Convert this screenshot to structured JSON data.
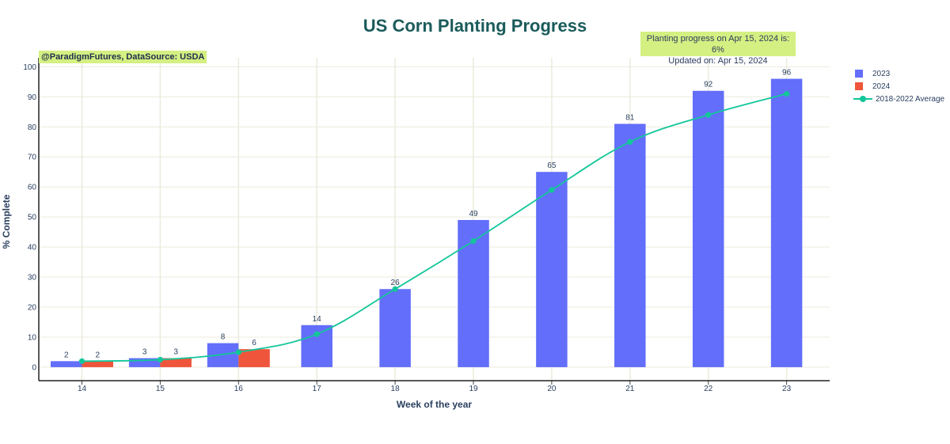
{
  "chart_data": {
    "type": "bar",
    "title": "US Corn Planting Progress",
    "xlabel": "Week of the year",
    "ylabel": "% Complete",
    "categories": [
      14,
      15,
      16,
      17,
      18,
      19,
      20,
      21,
      22,
      23
    ],
    "y_ticks": [
      0,
      10,
      20,
      30,
      40,
      50,
      60,
      70,
      80,
      90,
      100
    ],
    "ylim": [
      -4.5,
      103
    ],
    "grid": true,
    "legend_position": "top-right",
    "series": [
      {
        "name": "2023",
        "type": "bar",
        "color": "#636efa",
        "values": [
          2,
          3,
          8,
          14,
          26,
          49,
          65,
          81,
          92,
          96
        ]
      },
      {
        "name": "2024",
        "type": "bar",
        "color": "#ef553b",
        "values": [
          2,
          3,
          6,
          null,
          null,
          null,
          null,
          null,
          null,
          null
        ]
      },
      {
        "name": "2018-2022 Average",
        "type": "line",
        "color": "#13c69a",
        "values": [
          2,
          2.5,
          5,
          11,
          26,
          42,
          59,
          75,
          84,
          91
        ]
      }
    ]
  },
  "annotations": {
    "source": "@ParadigmFutures, DataSource: USDA",
    "status_line1": "Planting progress on Apr 15, 2024 is: 6%",
    "status_line2": "Updated on: Apr 15, 2024"
  }
}
